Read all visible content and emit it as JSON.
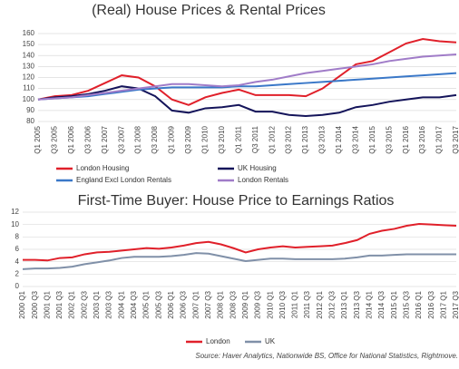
{
  "chart_data": [
    {
      "type": "line",
      "title": "(Real) House Prices & Rental Prices",
      "categories": [
        "Q1 2005",
        "Q3 2005",
        "Q1 2006",
        "Q3 2006",
        "Q1 2007",
        "Q3 2007",
        "Q1 2008",
        "Q3 2008",
        "Q1 2009",
        "Q3 2009",
        "Q1 2010",
        "Q3 2010",
        "Q1 2011",
        "Q3 2011",
        "Q1 2012",
        "Q3 2012",
        "Q1 2013",
        "Q3 2013",
        "Q1 2014",
        "Q3 2014",
        "Q1 2015",
        "Q3 2015",
        "Q1 2016",
        "Q3 2016",
        "Q1 2017",
        "Q3 2017"
      ],
      "series": [
        {
          "name": "London Housing",
          "color": "#e0202a",
          "values": [
            100,
            103,
            104,
            108,
            115,
            122,
            120,
            112,
            100,
            95,
            102,
            106,
            109,
            104,
            104,
            104,
            103,
            110,
            121,
            132,
            135,
            143,
            151,
            155,
            153,
            152
          ]
        },
        {
          "name": "UK Housing",
          "color": "#14145a",
          "values": [
            100,
            102,
            103,
            105,
            108,
            112,
            110,
            103,
            90,
            88,
            92,
            93,
            95,
            89,
            89,
            86,
            85,
            86,
            88,
            93,
            95,
            98,
            100,
            102,
            102,
            104
          ]
        },
        {
          "name": "England Excl London Rentals",
          "color": "#3a78c8",
          "values": [
            100,
            101,
            102,
            103,
            105,
            107,
            109,
            110,
            111,
            111,
            111,
            111,
            112,
            112,
            113,
            114,
            115,
            116,
            117,
            118,
            119,
            120,
            121,
            122,
            123,
            124
          ]
        },
        {
          "name": "London Rentals",
          "color": "#a07cc8",
          "values": [
            100,
            101,
            102,
            104,
            106,
            108,
            110,
            112,
            114,
            114,
            113,
            112,
            113,
            116,
            118,
            121,
            124,
            126,
            128,
            130,
            132,
            135,
            137,
            139,
            140,
            141
          ]
        }
      ],
      "ylim": [
        80,
        160
      ],
      "yticks": [
        80,
        90,
        100,
        110,
        120,
        130,
        140,
        150,
        160
      ],
      "grid": true
    },
    {
      "type": "line",
      "title": "First-Time Buyer: House Price to Earnings Ratios",
      "categories": [
        "2000 Q1",
        "2000 Q3",
        "2001 Q1",
        "2001 Q3",
        "2002 Q1",
        "2002 Q3",
        "2003 Q1",
        "2003 Q3",
        "2004 Q1",
        "2004 Q3",
        "2005 Q1",
        "2005 Q3",
        "2006 Q1",
        "2006 Q3",
        "2007 Q1",
        "2007 Q3",
        "2008 Q1",
        "2008 Q3",
        "2009 Q1",
        "2009 Q3",
        "2010 Q1",
        "2010 Q3",
        "2011 Q1",
        "2011 Q3",
        "2012 Q1",
        "2012 Q3",
        "2013 Q1",
        "2013 Q3",
        "2014 Q1",
        "2014 Q3",
        "2015 Q1",
        "2015 Q3",
        "2016 Q1",
        "2016 Q3",
        "2017 Q1",
        "2017 Q3"
      ],
      "series": [
        {
          "name": "London",
          "color": "#e0202a",
          "values": [
            4.3,
            4.3,
            4.2,
            4.6,
            4.7,
            5.2,
            5.5,
            5.6,
            5.8,
            6.0,
            6.2,
            6.1,
            6.3,
            6.6,
            7.0,
            7.2,
            6.8,
            6.2,
            5.5,
            6.0,
            6.3,
            6.5,
            6.3,
            6.4,
            6.5,
            6.6,
            7.0,
            7.5,
            8.5,
            9.0,
            9.3,
            9.8,
            10.1,
            10.0,
            9.9,
            9.8
          ]
        },
        {
          "name": "UK",
          "color": "#8090a8",
          "values": [
            2.8,
            2.9,
            2.9,
            3.0,
            3.2,
            3.6,
            3.9,
            4.2,
            4.6,
            4.8,
            4.8,
            4.8,
            4.9,
            5.1,
            5.4,
            5.3,
            4.9,
            4.5,
            4.1,
            4.3,
            4.5,
            4.5,
            4.4,
            4.4,
            4.4,
            4.4,
            4.5,
            4.7,
            5.0,
            5.0,
            5.1,
            5.2,
            5.2,
            5.2,
            5.2,
            5.2
          ]
        }
      ],
      "ylim": [
        0,
        12
      ],
      "yticks": [
        0,
        2,
        4,
        6,
        8,
        10,
        12
      ],
      "grid": true
    }
  ],
  "source": "Source: Haver Analytics, Nationwide BS, Office for National Statistics, Rightmove."
}
